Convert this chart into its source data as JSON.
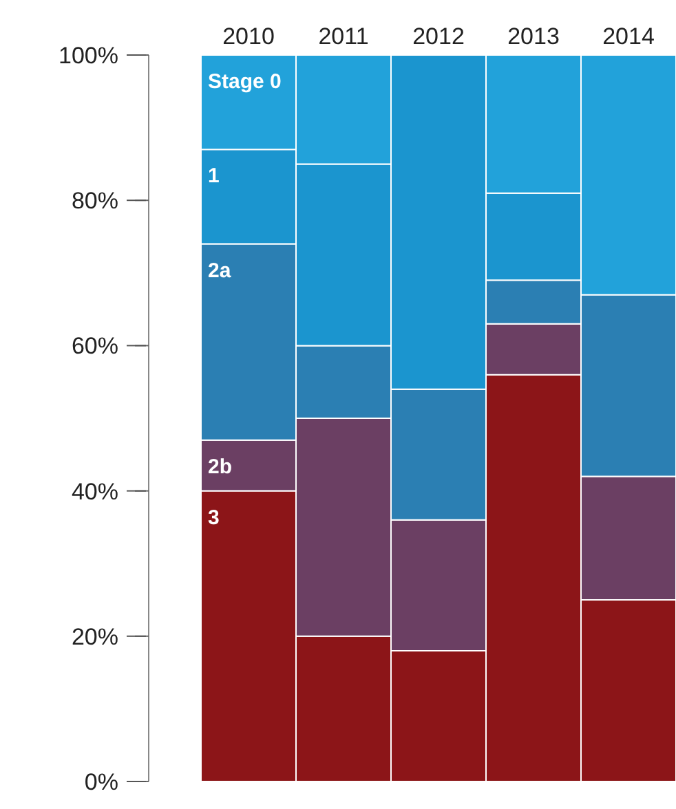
{
  "chart_data": {
    "type": "bar",
    "stacked": true,
    "categories": [
      "2010",
      "2011",
      "2012",
      "2013",
      "2014"
    ],
    "series": [
      {
        "name": "3",
        "color": "#8c1518",
        "values": [
          40,
          20,
          18,
          56,
          25
        ]
      },
      {
        "name": "2b",
        "color": "#6b3f63",
        "values": [
          7,
          30,
          18,
          7,
          17
        ]
      },
      {
        "name": "2a",
        "color": "#2b7fb3",
        "values": [
          27,
          10,
          18,
          6,
          25
        ]
      },
      {
        "name": "1",
        "color": "#1b95cf",
        "values": [
          13,
          25,
          46,
          12,
          0
        ]
      },
      {
        "name": "Stage 0",
        "color": "#22a2da",
        "values": [
          13,
          15,
          0,
          19,
          33
        ]
      }
    ],
    "ylim": [
      0,
      100
    ],
    "yticks": [
      {
        "value": 0,
        "label": "0%"
      },
      {
        "value": 20,
        "label": "20%"
      },
      {
        "value": 40,
        "label": "40%"
      },
      {
        "value": 60,
        "label": "60%"
      },
      {
        "value": 80,
        "label": "80%"
      },
      {
        "value": 100,
        "label": "100%"
      }
    ],
    "grid": false,
    "legend": false
  }
}
